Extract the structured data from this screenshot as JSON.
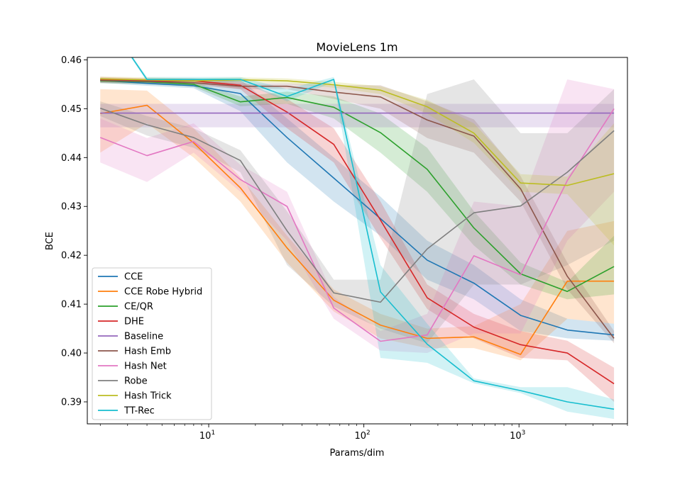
{
  "chart_data": {
    "type": "line",
    "title": "MovieLens 1m",
    "xlabel": "Params/dim",
    "ylabel": "BCE",
    "xscale": "log",
    "xlim": [
      1.65,
      5000
    ],
    "ylim": [
      0.3855,
      0.4605
    ],
    "x_ticks": [
      {
        "value": 10,
        "base": "10",
        "exp": "1"
      },
      {
        "value": 100,
        "base": "10",
        "exp": "2"
      },
      {
        "value": 1000,
        "base": "10",
        "exp": "3"
      }
    ],
    "y_ticks": [
      {
        "value": 0.39,
        "label": "0.39"
      },
      {
        "value": 0.4,
        "label": "0.40"
      },
      {
        "value": 0.41,
        "label": "0.41"
      },
      {
        "value": 0.42,
        "label": "0.42"
      },
      {
        "value": 0.43,
        "label": "0.43"
      },
      {
        "value": 0.44,
        "label": "0.44"
      },
      {
        "value": 0.45,
        "label": "0.45"
      },
      {
        "value": 0.46,
        "label": "0.46"
      }
    ],
    "grid": false,
    "legend_position": "lower-left",
    "x": [
      2,
      4,
      8,
      16,
      32,
      64,
      128,
      256,
      512,
      1024,
      2048,
      4096
    ],
    "series": [
      {
        "name": "CCE",
        "color": "#1f77b4",
        "values": [
          0.4558,
          0.4552,
          0.4547,
          0.4531,
          0.4441,
          0.4358,
          0.4275,
          0.419,
          0.4143,
          0.4077,
          0.4047,
          0.4037
        ],
        "lower": [
          0.4553,
          0.4547,
          0.4542,
          0.4495,
          0.439,
          0.431,
          0.424,
          0.415,
          0.411,
          0.4045,
          0.403,
          0.4025
        ],
        "upper": [
          0.4563,
          0.4557,
          0.4552,
          0.456,
          0.448,
          0.44,
          0.432,
          0.423,
          0.418,
          0.411,
          0.407,
          0.406
        ]
      },
      {
        "name": "CCE Robe Hybrid",
        "color": "#ff7f0e",
        "values": [
          0.449,
          0.4507,
          0.443,
          0.4338,
          0.4215,
          0.4108,
          0.4057,
          0.403,
          0.4033,
          0.3997,
          0.4147,
          0.4147
        ],
        "lower": [
          0.441,
          0.447,
          0.44,
          0.431,
          0.4185,
          0.4085,
          0.403,
          0.401,
          0.401,
          0.3985,
          0.407,
          0.406
        ],
        "upper": [
          0.454,
          0.4537,
          0.446,
          0.436,
          0.424,
          0.413,
          0.408,
          0.405,
          0.4055,
          0.41,
          0.425,
          0.427
        ]
      },
      {
        "name": "CE/QR",
        "color": "#2ca02c",
        "values": [
          0.4557,
          0.4555,
          0.455,
          0.4514,
          0.4523,
          0.4503,
          0.4451,
          0.4376,
          0.4256,
          0.4162,
          0.4126,
          0.4177
        ],
        "lower": [
          0.4552,
          0.455,
          0.4545,
          0.4505,
          0.451,
          0.448,
          0.441,
          0.433,
          0.422,
          0.414,
          0.411,
          0.412
        ],
        "upper": [
          0.4562,
          0.456,
          0.4555,
          0.4525,
          0.4535,
          0.4525,
          0.449,
          0.442,
          0.429,
          0.4185,
          0.4145,
          0.424
        ]
      },
      {
        "name": "DHE",
        "color": "#d62728",
        "values": [
          0.456,
          0.4557,
          0.4557,
          0.4548,
          0.4493,
          0.4427,
          0.4272,
          0.4113,
          0.4053,
          0.4017,
          0.4,
          0.3937
        ],
        "lower": [
          0.4555,
          0.4552,
          0.4552,
          0.454,
          0.446,
          0.439,
          0.4235,
          0.409,
          0.403,
          0.399,
          0.3985,
          0.39
        ],
        "upper": [
          0.4565,
          0.4562,
          0.4562,
          0.4556,
          0.452,
          0.446,
          0.431,
          0.414,
          0.408,
          0.4045,
          0.4025,
          0.397
        ]
      },
      {
        "name": "Baseline",
        "color": "#9467bd",
        "values": [
          0.4491,
          0.4491,
          0.4491,
          0.4491,
          0.4491,
          0.4491,
          0.4491,
          0.4491,
          0.4491,
          0.4491,
          0.4491,
          0.4491
        ],
        "lower": [
          0.4462,
          0.4462,
          0.4462,
          0.4462,
          0.4462,
          0.4462,
          0.4462,
          0.4462,
          0.4462,
          0.4462,
          0.4462,
          0.4462
        ],
        "upper": [
          0.451,
          0.451,
          0.451,
          0.451,
          0.451,
          0.451,
          0.451,
          0.451,
          0.451,
          0.451,
          0.451,
          0.451
        ]
      },
      {
        "name": "Hash Emb",
        "color": "#8c564b",
        "values": [
          0.4558,
          0.4556,
          0.4553,
          0.4546,
          0.4546,
          0.4534,
          0.4524,
          0.4477,
          0.4444,
          0.4336,
          0.4157,
          0.403
        ],
        "lower": [
          0.4553,
          0.4551,
          0.4548,
          0.454,
          0.454,
          0.452,
          0.45,
          0.444,
          0.441,
          0.431,
          0.413,
          0.402
        ],
        "upper": [
          0.4563,
          0.4561,
          0.4558,
          0.4552,
          0.4552,
          0.4548,
          0.4548,
          0.4515,
          0.4478,
          0.4362,
          0.4185,
          0.4045
        ]
      },
      {
        "name": "Hash Net",
        "color": "#e377c2",
        "values": [
          0.4441,
          0.4404,
          0.4433,
          0.4355,
          0.43,
          0.4092,
          0.4024,
          0.4037,
          0.4199,
          0.416,
          0.4353,
          0.45
        ],
        "lower": [
          0.439,
          0.435,
          0.441,
          0.433,
          0.423,
          0.407,
          0.4005,
          0.4,
          0.404,
          0.404,
          0.423,
          0.433
        ],
        "upper": [
          0.448,
          0.444,
          0.447,
          0.4385,
          0.433,
          0.4115,
          0.4045,
          0.408,
          0.431,
          0.43,
          0.456,
          0.454
        ]
      },
      {
        "name": "Robe",
        "color": "#7f7f7f",
        "values": [
          0.4501,
          0.4467,
          0.4441,
          0.4394,
          0.425,
          0.4123,
          0.4104,
          0.4213,
          0.4287,
          0.4301,
          0.437,
          0.4455
        ],
        "lower": [
          0.4485,
          0.4445,
          0.442,
          0.437,
          0.418,
          0.4095,
          0.405,
          0.402,
          0.414,
          0.414,
          0.418,
          0.423
        ],
        "upper": [
          0.4515,
          0.4485,
          0.446,
          0.4415,
          0.429,
          0.415,
          0.415,
          0.453,
          0.456,
          0.445,
          0.445,
          0.454
        ]
      },
      {
        "name": "Hash Trick",
        "color": "#bcbd22",
        "values": [
          0.4561,
          0.4559,
          0.4557,
          0.4559,
          0.4557,
          0.4549,
          0.4538,
          0.4504,
          0.445,
          0.4348,
          0.4343,
          0.4367
        ],
        "lower": [
          0.4556,
          0.4554,
          0.4552,
          0.4554,
          0.4552,
          0.4543,
          0.453,
          0.449,
          0.443,
          0.433,
          0.4325,
          0.422
        ],
        "upper": [
          0.4566,
          0.4564,
          0.4562,
          0.4564,
          0.4562,
          0.4555,
          0.4546,
          0.4518,
          0.447,
          0.4366,
          0.4361,
          0.447
        ]
      },
      {
        "name": "TT-Rec",
        "color": "#17becf",
        "values": [
          0.47,
          0.456,
          0.456,
          0.456,
          0.4525,
          0.456,
          0.4125,
          0.4018,
          0.3943,
          0.3923,
          0.39,
          0.3885
        ],
        "lower": [
          0.47,
          0.4555,
          0.4555,
          0.4555,
          0.4515,
          0.4555,
          0.399,
          0.398,
          0.3938,
          0.3918,
          0.388,
          0.3865
        ],
        "upper": [
          0.47,
          0.4565,
          0.4565,
          0.4565,
          0.454,
          0.4565,
          0.418,
          0.406,
          0.3948,
          0.393,
          0.393,
          0.3905
        ]
      }
    ]
  }
}
